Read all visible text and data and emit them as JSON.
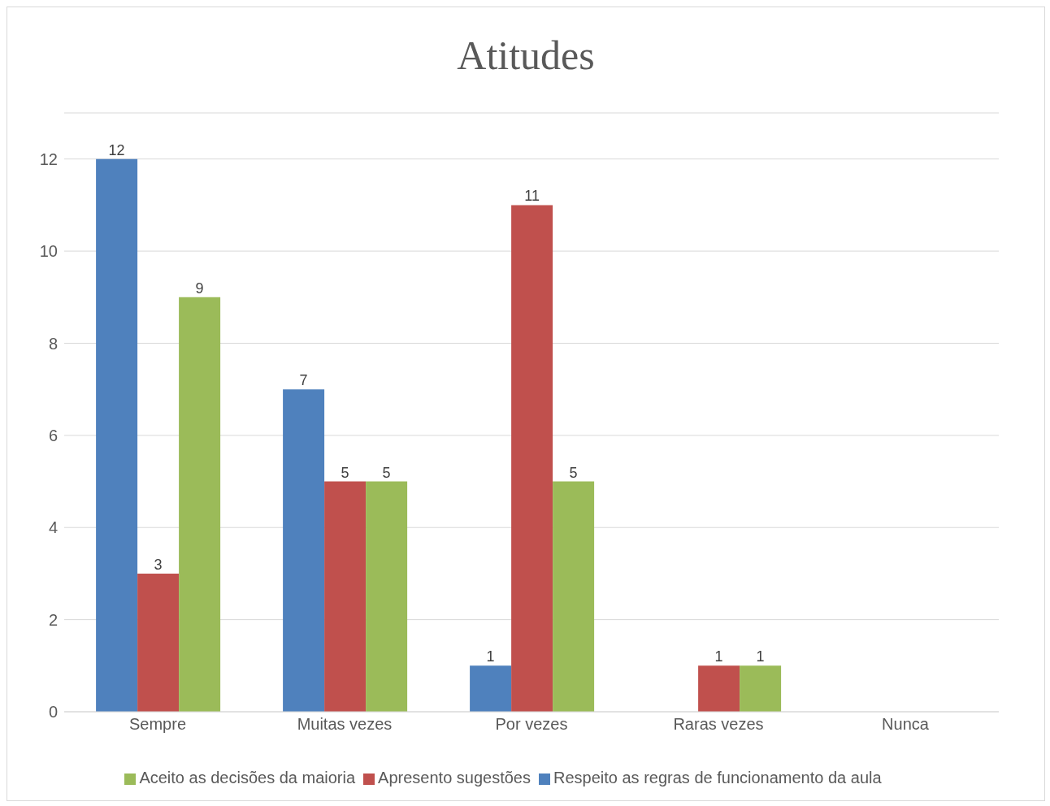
{
  "chart_data": {
    "type": "bar",
    "title": "Atitudes",
    "categories": [
      "Sempre",
      "Muitas vezes",
      "Por vezes",
      "Raras vezes",
      "Nunca"
    ],
    "series": [
      {
        "name": "Respeito as regras de funcionamento da aula",
        "color": "#4f81bd",
        "values": [
          12,
          7,
          1,
          null,
          null
        ]
      },
      {
        "name": "Apresento sugestões",
        "color": "#c0504d",
        "values": [
          3,
          5,
          11,
          1,
          null
        ]
      },
      {
        "name": "Aceito as decisões da maioria",
        "color": "#9bbb59",
        "values": [
          9,
          5,
          5,
          1,
          null
        ]
      }
    ],
    "ylim": [
      0,
      13
    ],
    "yticks": [
      0,
      2,
      4,
      6,
      8,
      10,
      12
    ],
    "grid": "y",
    "legend": "bottom",
    "data_labels": true
  }
}
